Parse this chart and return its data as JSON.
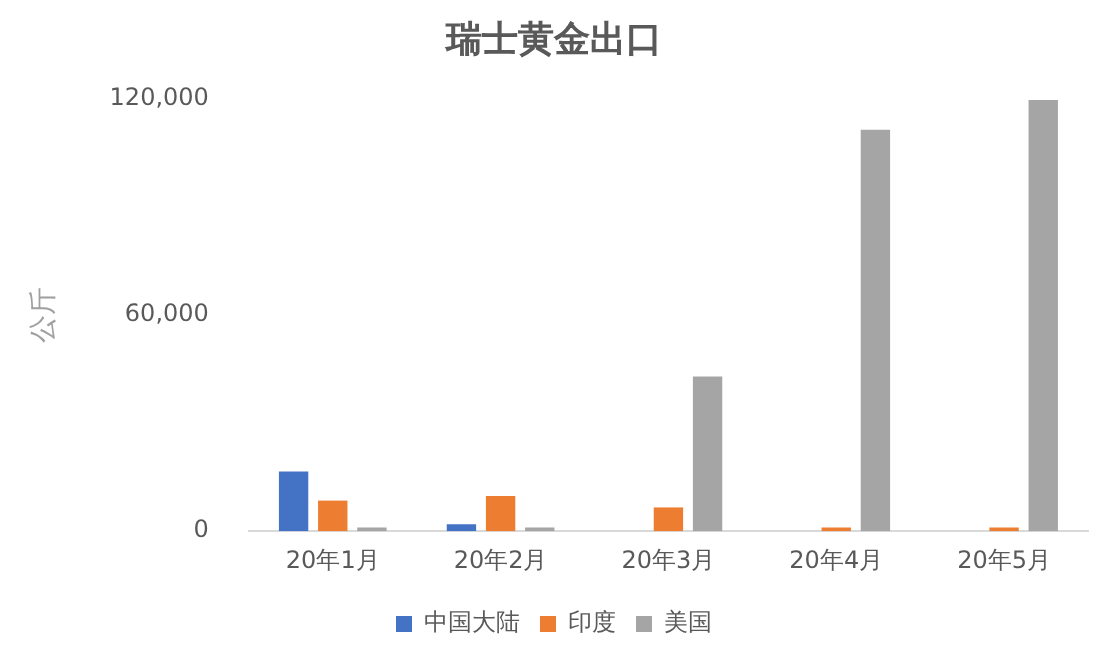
{
  "chart_data": {
    "type": "bar",
    "title": "瑞士黄金出口",
    "ylabel": "公斤",
    "categories": [
      "20年1月",
      "20年2月",
      "20年3月",
      "20年4月",
      "20年5月"
    ],
    "series": [
      {
        "name": "中国大陆",
        "color": "#4472c4",
        "values": [
          16600,
          1900,
          0,
          0,
          0
        ]
      },
      {
        "name": "印度",
        "color": "#ed7d31",
        "values": [
          8500,
          9800,
          6600,
          1000,
          1000
        ]
      },
      {
        "name": "美国",
        "color": "#a5a5a5",
        "values": [
          1000,
          1000,
          43000,
          111500,
          119800
        ]
      }
    ],
    "ylim": [
      0,
      120000
    ],
    "yticks": [
      {
        "value": 0,
        "label": "0"
      },
      {
        "value": 60000,
        "label": "60,000"
      },
      {
        "value": 120000,
        "label": "120,000"
      }
    ],
    "grid": false,
    "legend": "bottom"
  }
}
